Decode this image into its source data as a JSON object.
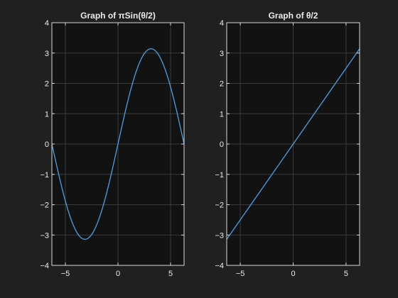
{
  "chart_data": [
    {
      "type": "line",
      "title": "Graph of πSin(θ/2)",
      "function": "pi*sin(theta/2)",
      "xlim": [
        -6.2832,
        6.2832
      ],
      "ylim": [
        -4,
        4
      ],
      "xticks": [
        -5,
        0,
        5
      ],
      "yticks": [
        4,
        3,
        2,
        1,
        0,
        -1,
        -2,
        -3,
        -4
      ],
      "grid": true,
      "x": [
        -6.2832,
        -5.4978,
        -4.7124,
        -3.927,
        -3.1416,
        -2.3562,
        -1.5708,
        -0.7854,
        0,
        0.7854,
        1.5708,
        2.3562,
        3.1416,
        3.927,
        4.7124,
        5.4978,
        6.2832
      ],
      "y": [
        0,
        -1.2023,
        -2.2214,
        -2.9025,
        -3.1416,
        -2.9025,
        -2.2214,
        -1.2023,
        0,
        1.2023,
        2.2214,
        2.9025,
        3.1416,
        2.9025,
        2.2214,
        1.2023,
        0
      ],
      "line_color": "#4a9fe8"
    },
    {
      "type": "line",
      "title": "Graph of θ/2",
      "function": "theta/2",
      "xlim": [
        -6.2832,
        6.2832
      ],
      "ylim": [
        -4,
        4
      ],
      "xticks": [
        -5,
        0,
        5
      ],
      "yticks": [
        4,
        3,
        2,
        1,
        0,
        -1,
        -2,
        -3,
        -4
      ],
      "grid": true,
      "x": [
        -6.2832,
        -3.1416,
        0,
        3.1416,
        6.2832
      ],
      "y": [
        -3.1416,
        -1.5708,
        0,
        1.5708,
        3.1416
      ],
      "line_color": "#4a9fe8"
    }
  ],
  "colors": {
    "figure_bg": "#202020",
    "axes_bg": "#121212",
    "grid": "#3a3a3a",
    "axis_line": "#d8d8d8",
    "text": "#ececec"
  }
}
